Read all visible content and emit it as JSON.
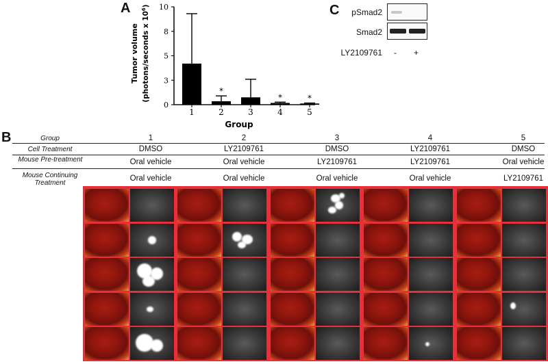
{
  "panels": {
    "a": "A",
    "b": "B",
    "c": "C"
  },
  "chart_data": {
    "type": "bar",
    "categories": [
      "1",
      "2",
      "3",
      "4",
      "5"
    ],
    "values": [
      4.2,
      0.35,
      0.75,
      0.18,
      0.12
    ],
    "errors": [
      5.1,
      0.55,
      1.85,
      0.08,
      0.05
    ],
    "significance": [
      "",
      "*",
      "",
      "*",
      "*"
    ],
    "ylabel_line1": "Tumor volume",
    "ylabel_line2": "(photons/seconds x 10",
    "ylabel_exp": "6",
    "ylabel_end": ")",
    "xlabel": "Group",
    "yticks": [
      "0",
      "3",
      "5",
      "8",
      "10"
    ],
    "ytick_values": [
      0,
      2.5,
      5,
      7.5,
      10
    ],
    "ylim": [
      0,
      10
    ]
  },
  "western": {
    "rows": [
      "pSmad2",
      "Smad2"
    ],
    "treatment_label": "LY2109761",
    "lanes": [
      "-",
      "+"
    ]
  },
  "table": {
    "group_label": "Group",
    "cell_label": "Cell Treatment",
    "pre_label": "Mouse Pre-treatment",
    "cont_label": "Mouse Continuing Treatment",
    "groups": [
      "1",
      "2",
      "3",
      "4",
      "5"
    ],
    "cell": [
      "DMSO",
      "LY2109761",
      "DMSO",
      "LY2109761",
      "DMSO"
    ],
    "pre": [
      "Oral vehicle",
      "Oral vehicle",
      "LY2109761",
      "LY2109761",
      "Oral vehicle"
    ],
    "cont": [
      "Oral vehicle",
      "Oral vehicle",
      "Oral vehicle",
      "Oral vehicle",
      "LY2109761"
    ]
  }
}
